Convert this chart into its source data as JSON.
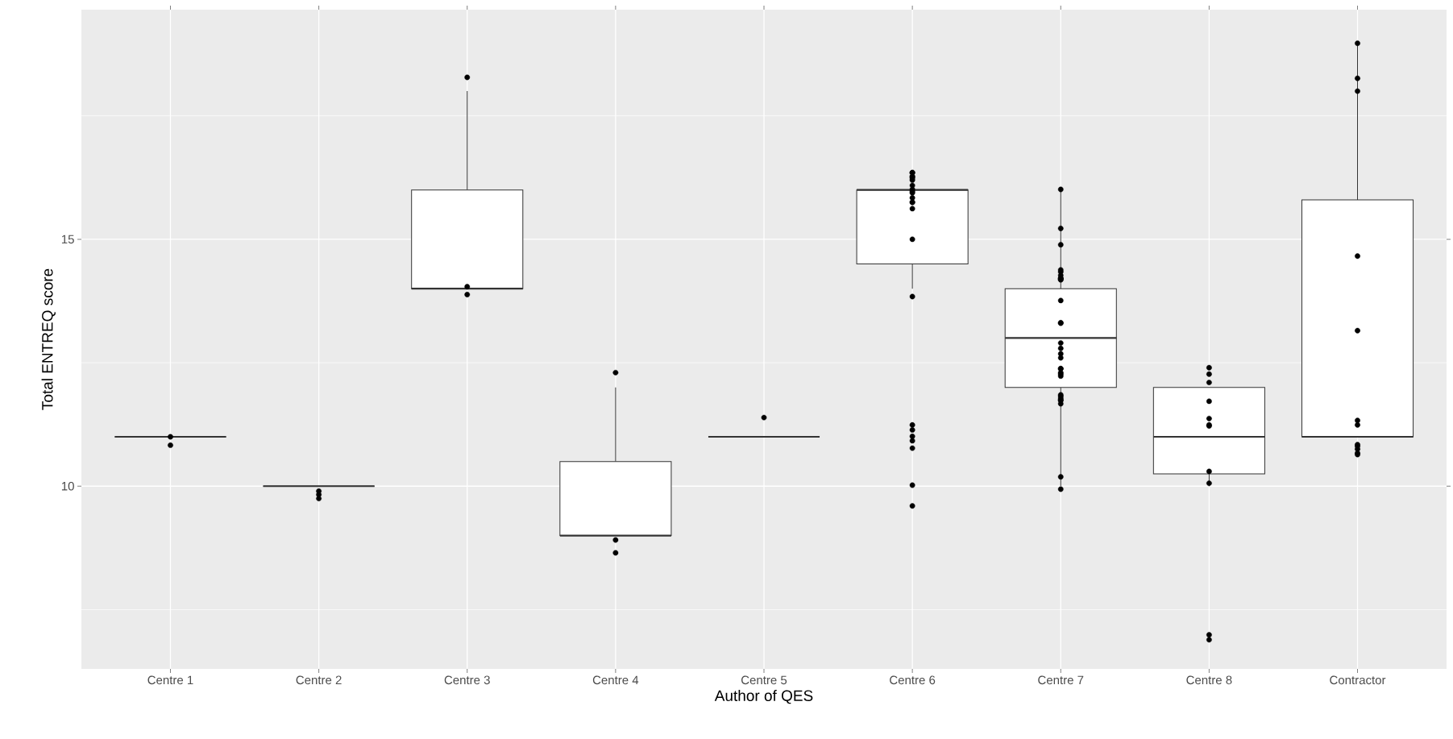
{
  "chart_data": {
    "type": "box",
    "xlabel": "Author of QES",
    "ylabel": "Total ENTREQ score",
    "categories": [
      "Centre 1",
      "Centre 2",
      "Centre 3",
      "Centre 4",
      "Centre 5",
      "Centre 6",
      "Centre 7",
      "Centre 8",
      "Contractor"
    ],
    "ylim": [
      6.3,
      19.65
    ],
    "yticks": [
      {
        "value": 7.5,
        "label": null
      },
      10,
      {
        "value": 12.5,
        "label": null
      },
      15,
      {
        "value": 17.5,
        "label": null
      }
    ],
    "grid": true,
    "series": [
      {
        "type": "box",
        "color": "#333333",
        "boxes": [
          {
            "low": 11,
            "q1": 11,
            "median": 11,
            "q3": 11,
            "high": 11
          },
          {
            "low": 10,
            "q1": 10,
            "median": 10,
            "q3": 10,
            "high": 10
          },
          {
            "low": 14,
            "q1": 14,
            "median": 14,
            "q3": 16,
            "high": 18
          },
          {
            "low": 9,
            "q1": 9,
            "median": 9,
            "q3": 10.5,
            "high": 12
          },
          {
            "low": 11,
            "q1": 11,
            "median": 11,
            "q3": 11,
            "high": 11
          },
          {
            "low": 14,
            "q1": 14.5,
            "median": 16,
            "q3": 16,
            "high": 16
          },
          {
            "low": 10,
            "q1": 12,
            "median": 13,
            "q3": 14,
            "high": 16
          },
          {
            "low": 10,
            "q1": 10.25,
            "median": 11,
            "q3": 12,
            "high": 12
          },
          {
            "low": 11,
            "q1": 11,
            "median": 11,
            "q3": 15.8,
            "high": 19
          }
        ]
      },
      {
        "type": "scatter",
        "color": "#000000",
        "x": [
          "Centre 1",
          "Centre 1",
          "Centre 2",
          "Centre 2",
          "Centre 2",
          "Centre 3",
          "Centre 3",
          "Centre 3",
          "Centre 4",
          "Centre 4",
          "Centre 4",
          "Centre 5",
          "Centre 6",
          "Centre 6",
          "Centre 6",
          "Centre 6",
          "Centre 6",
          "Centre 6",
          "Centre 6",
          "Centre 6",
          "Centre 6",
          "Centre 6",
          "Centre 6",
          "Centre 6",
          "Centre 6",
          "Centre 6",
          "Centre 6",
          "Centre 6",
          "Centre 6",
          "Centre 6",
          "Centre 6",
          "Centre 6",
          "Centre 6",
          "Centre 6",
          "Centre 6",
          "Centre 7",
          "Centre 7",
          "Centre 7",
          "Centre 7",
          "Centre 7",
          "Centre 7",
          "Centre 7",
          "Centre 7",
          "Centre 7",
          "Centre 7",
          "Centre 7",
          "Centre 7",
          "Centre 7",
          "Centre 7",
          "Centre 7",
          "Centre 7",
          "Centre 7",
          "Centre 7",
          "Centre 7",
          "Centre 7",
          "Centre 7",
          "Centre 7",
          "Centre 7",
          "Centre 7",
          "Centre 7",
          "Centre 7",
          "Centre 7",
          "Centre 7",
          "Centre 7",
          "Centre 7",
          "Centre 8",
          "Centre 8",
          "Centre 8",
          "Centre 8",
          "Centre 8",
          "Centre 8",
          "Centre 8",
          "Centre 8",
          "Centre 8",
          "Centre 8",
          "Centre 8",
          "Contractor",
          "Contractor",
          "Contractor",
          "Contractor",
          "Contractor",
          "Contractor",
          "Contractor",
          "Contractor",
          "Contractor",
          "Contractor",
          "Contractor",
          "Contractor"
        ],
        "values": [
          11.0,
          10.83,
          9.83,
          9.9,
          9.75,
          18.28,
          14.04,
          13.88,
          12.3,
          8.91,
          8.65,
          11.39,
          16.27,
          16.35,
          16.35,
          16.24,
          16.27,
          16.2,
          16.09,
          16.01,
          15.94,
          15.97,
          15.84,
          15.75,
          15.75,
          15.62,
          15.0,
          13.84,
          11.24,
          11.14,
          11.01,
          10.92,
          10.77,
          10.02,
          9.6,
          16.01,
          15.22,
          14.89,
          14.34,
          14.38,
          14.21,
          14.19,
          14.21,
          14.27,
          14.18,
          13.76,
          13.31,
          13.3,
          12.9,
          12.68,
          12.6,
          12.79,
          12.38,
          12.38,
          12.3,
          12.23,
          12.27,
          11.85,
          11.74,
          11.82,
          11.67,
          11.74,
          11.78,
          10.19,
          9.94,
          12.4,
          12.27,
          12.1,
          11.72,
          11.37,
          11.24,
          11.22,
          10.3,
          10.06,
          6.89,
          6.99,
          18.97,
          18.26,
          18.0,
          14.66,
          13.15,
          11.33,
          11.24,
          10.81,
          10.84,
          10.75,
          10.67,
          10.64
        ]
      }
    ]
  }
}
